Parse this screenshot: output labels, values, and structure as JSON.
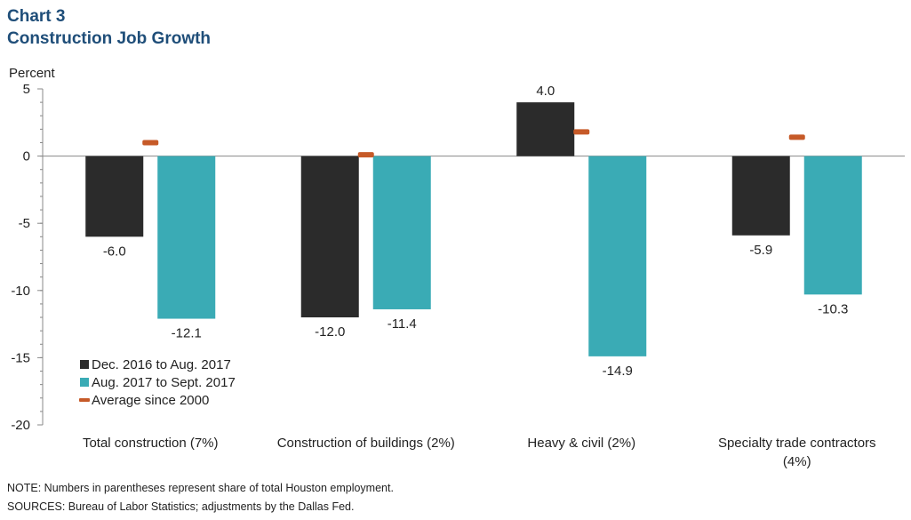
{
  "title": {
    "line1": "Chart 3",
    "line2": "Construction Job Growth"
  },
  "notes": {
    "note": "NOTE:  Numbers  in parentheses  represent share of total Houston employment.",
    "sources": "SOURCES:  Bureau of Labor Statistics;  adjustments  by the Dallas Fed."
  },
  "colors": {
    "series1": "#2b2b2b",
    "series2": "#3aabb5",
    "average": "#c65a28",
    "title": "#1f4e79"
  },
  "chart_data": {
    "type": "bar",
    "ylabel": "Percent",
    "ylim": [
      -20,
      5
    ],
    "yticks": [
      "5",
      "0",
      "-5",
      "-10",
      "-15",
      "-20"
    ],
    "ytick_values": [
      5,
      0,
      -5,
      -10,
      -15,
      -20
    ],
    "categories": [
      [
        "Total construction (7%)"
      ],
      [
        "Construction of buildings (2%)"
      ],
      [
        "Heavy & civil (2%)"
      ],
      [
        "Specialty trade contractors",
        "(4%)"
      ]
    ],
    "series": [
      {
        "name": "Dec. 2016 to Aug. 2017",
        "values": [
          -6.0,
          -12.0,
          4.0,
          -5.9
        ],
        "labels": [
          "-6.0",
          "-12.0",
          "4.0",
          "-5.9"
        ]
      },
      {
        "name": "Aug. 2017 to Sept. 2017",
        "values": [
          -12.1,
          -11.4,
          -14.9,
          -10.3
        ],
        "labels": [
          "-12.1",
          "-11.4",
          "-14.9",
          "-10.3"
        ]
      }
    ],
    "average": {
      "name": "Average since 2000",
      "values": [
        1.0,
        0.1,
        1.8,
        1.4
      ]
    },
    "legend_position": "bottom-left"
  }
}
